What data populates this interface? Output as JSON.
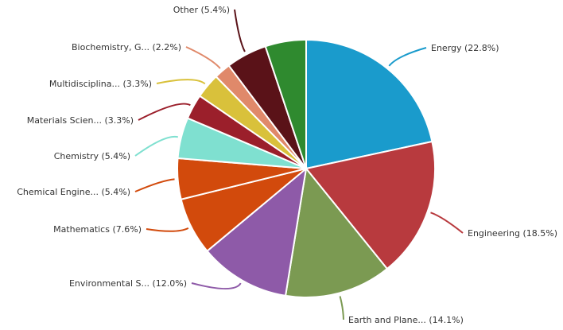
{
  "chart_data": {
    "type": "pie",
    "start_angle_deg": 0,
    "direction": "clockwise",
    "slices": [
      {
        "label": "Energy (22.8%)",
        "value": 22.8,
        "color": "#1a9bcc"
      },
      {
        "label": "Engineering (18.5%)",
        "value": 18.5,
        "color": "#b83a3e"
      },
      {
        "label": "Earth and Plane... (14.1%)",
        "value": 14.1,
        "color": "#7b9a52"
      },
      {
        "label": "Environmental S... (12.0%)",
        "value": 12.0,
        "color": "#8e5aa8"
      },
      {
        "label": "Mathematics (7.6%)",
        "value": 7.6,
        "color": "#d24a0c"
      },
      {
        "label": "Chemical Engine... (5.4%)",
        "value": 5.4,
        "color": "#d24a0c"
      },
      {
        "label": "Chemistry (5.4%)",
        "value": 5.4,
        "color": "#7fe0d0"
      },
      {
        "label": "Materials Scien... (3.3%)",
        "value": 3.3,
        "color": "#9b1f2b"
      },
      {
        "label": "Multidisciplina... (3.3%)",
        "value": 3.3,
        "color": "#d9c13b"
      },
      {
        "label": "Biochemistry, G... (2.2%)",
        "value": 2.2,
        "color": "#e0896a"
      },
      {
        "label": "Other (5.4%)",
        "value": 5.4,
        "color": "#5a1218"
      }
    ],
    "extra_visual_slice": {
      "label": "",
      "value": 5.4,
      "color": "#2f8a2f"
    }
  }
}
